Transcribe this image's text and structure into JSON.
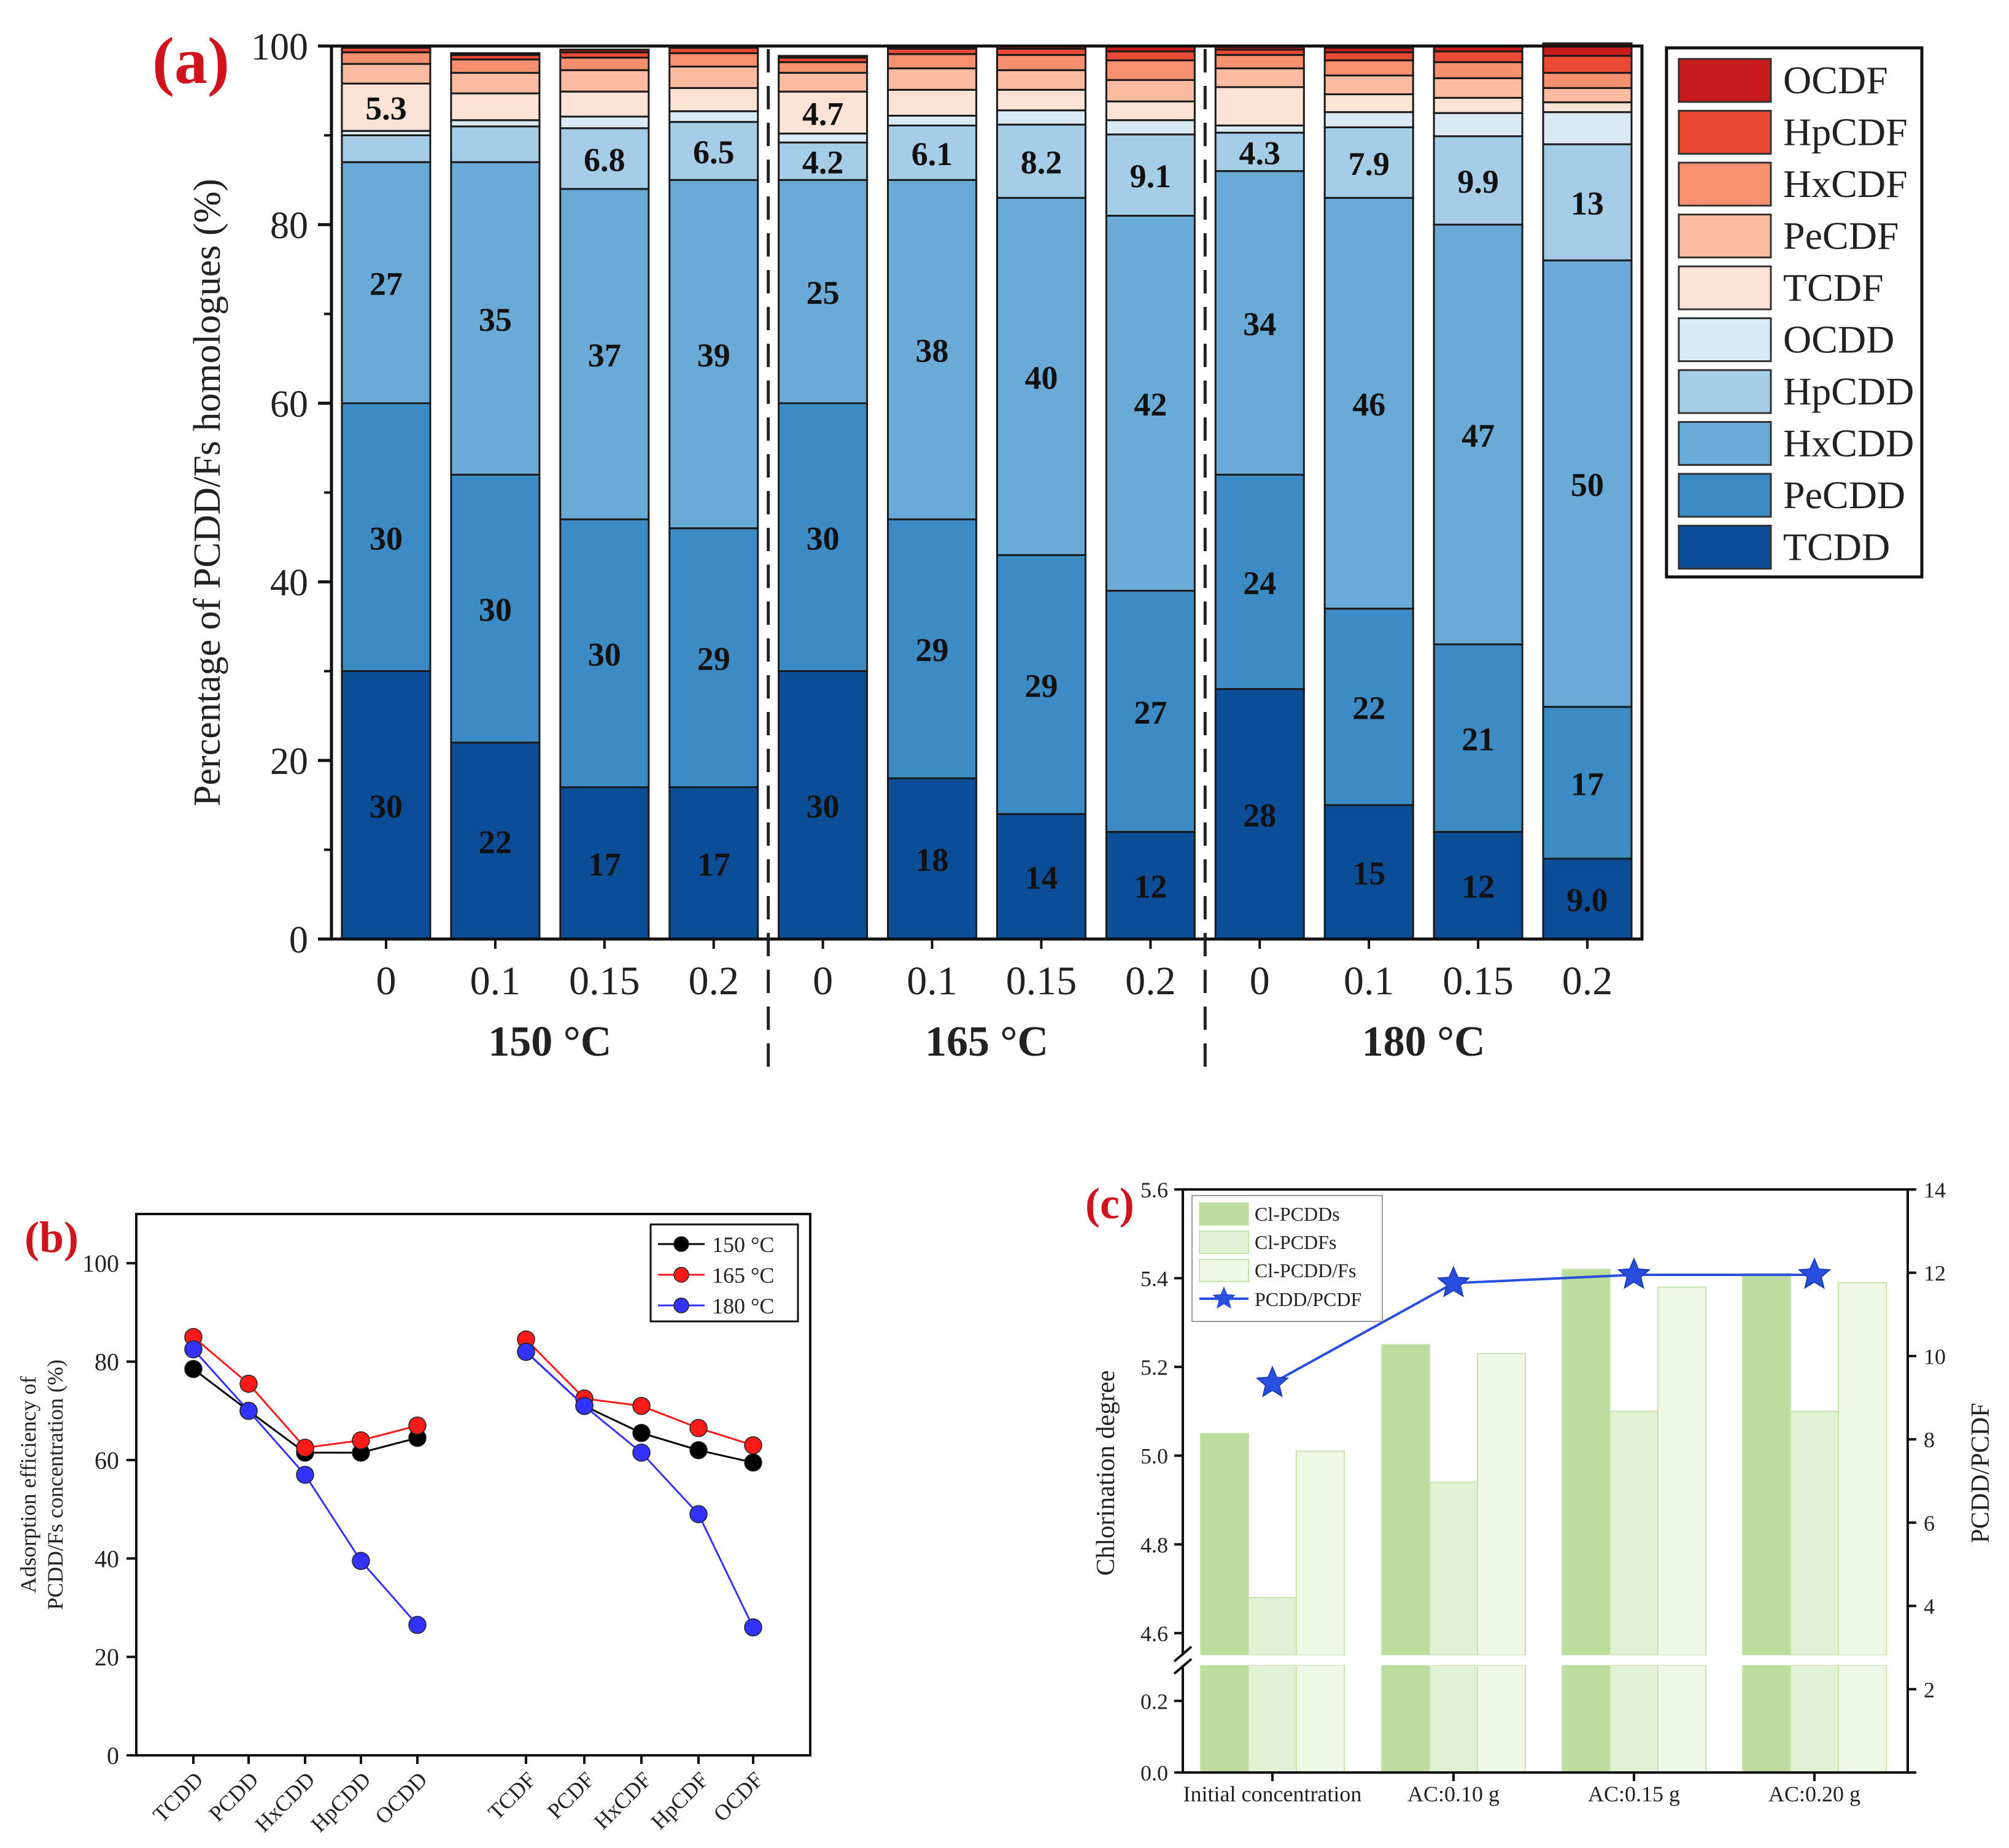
{
  "chart_data": [
    {
      "id": "a",
      "type": "bar",
      "stacked": true,
      "panel_label": "(a)",
      "ylabel": "Percentage of  PCDD/Fs homologues (%)",
      "ylim": [
        0,
        100
      ],
      "yticks": [
        "0",
        "20",
        "40",
        "60",
        "80",
        "100"
      ],
      "categories": [
        "0",
        "0.1",
        "0.15",
        "0.2",
        "0",
        "0.1",
        "0.15",
        "0.2",
        "0",
        "0.1",
        "0.15",
        "0.2"
      ],
      "groups": [
        "150 °C",
        "165 °C",
        "180 °C"
      ],
      "series": [
        {
          "name": "TCDD",
          "color": "#0b4d96",
          "values": [
            30,
            22,
            17,
            17,
            30,
            18,
            14,
            12,
            28,
            15,
            12,
            9.0
          ]
        },
        {
          "name": "PeCDD",
          "color": "#3c8bc5",
          "values": [
            30,
            30,
            30,
            29,
            30,
            29,
            29,
            27,
            24,
            22,
            21,
            17
          ]
        },
        {
          "name": "HxCDD",
          "color": "#6aaad7",
          "values": [
            27,
            35,
            37,
            39,
            25,
            38,
            40,
            42,
            34,
            46,
            47,
            50
          ]
        },
        {
          "name": "HpCDD",
          "color": "#a5cde8",
          "values": [
            3.0,
            4.0,
            6.8,
            6.5,
            4.2,
            6.1,
            8.2,
            9.1,
            4.3,
            7.9,
            9.9,
            13
          ]
        },
        {
          "name": "OCDD",
          "color": "#daeaf5",
          "values": [
            0.5,
            0.7,
            1.3,
            1.2,
            1.0,
            1.1,
            1.6,
            1.6,
            0.8,
            1.7,
            2.6,
            3.6
          ]
        },
        {
          "name": "TCDF",
          "color": "#fde3d5",
          "values": [
            5.3,
            3.0,
            2.8,
            2.6,
            4.7,
            2.9,
            2.3,
            2.1,
            4.3,
            2.0,
            1.7,
            1.1
          ]
        },
        {
          "name": "PeCDF",
          "color": "#fbbba0",
          "values": [
            2.2,
            2.3,
            2.4,
            2.4,
            2.1,
            2.4,
            2.2,
            2.4,
            2.1,
            2.1,
            2.2,
            1.6
          ]
        },
        {
          "name": "HxCDF",
          "color": "#f6906f",
          "values": [
            1.3,
            1.5,
            1.4,
            1.5,
            1.2,
            1.6,
            1.7,
            2.2,
            1.5,
            1.7,
            1.8,
            1.7
          ]
        },
        {
          "name": "HpCDF",
          "color": "#ea4a34",
          "values": [
            0.5,
            0.5,
            0.6,
            0.6,
            0.5,
            0.6,
            0.7,
            1.0,
            0.6,
            0.9,
            1.2,
            1.9
          ]
        },
        {
          "name": "OCDF",
          "color": "#c81b1d",
          "values": [
            0.2,
            0.2,
            0.3,
            0.2,
            0.2,
            0.2,
            0.3,
            0.6,
            0.3,
            0.5,
            0.6,
            1.4
          ]
        }
      ],
      "data_labels": {
        "TCDD": [
          "30",
          "22",
          "17",
          "17",
          "30",
          "18",
          "14",
          "12",
          "28",
          "15",
          "12",
          "9.0"
        ],
        "PeCDD": [
          "30",
          "30",
          "30",
          "29",
          "30",
          "29",
          "29",
          "27",
          "24",
          "22",
          "21",
          "17"
        ],
        "HxCDD": [
          "27",
          "35",
          "37",
          "39",
          "25",
          "38",
          "40",
          "42",
          "34",
          "46",
          "47",
          "50"
        ],
        "HpCDD": [
          "",
          "",
          "6.8",
          "6.5",
          "4.2",
          "6.1",
          "8.2",
          "9.1",
          "4.3",
          "7.9",
          "9.9",
          "13"
        ],
        "TCDF": [
          "5.3",
          "",
          "",
          "",
          "4.7",
          "",
          "",
          "",
          "",
          "",
          "",
          ""
        ]
      },
      "legend_order": [
        "OCDF",
        "HpCDF",
        "HxCDF",
        "PeCDF",
        "TCDF",
        "OCDD",
        "HpCDD",
        "HxCDD",
        "PeCDD",
        "TCDD"
      ],
      "legend_position": "right"
    },
    {
      "id": "b",
      "type": "line",
      "panel_label": "(b)",
      "ylabel_lines": [
        "Adsorption efficiency of",
        "PCDD/Fs concentration (%)"
      ],
      "ylim": [
        0,
        110
      ],
      "yticks": [
        "0",
        "20",
        "40",
        "60",
        "80",
        "100"
      ],
      "categories": [
        "TCDD",
        "PCDD",
        "HxCDD",
        "HpCDD",
        "OCDD",
        "TCDF",
        "PCDF",
        "HxCDF",
        "HpCDF",
        "OCDF"
      ],
      "series": [
        {
          "name": "150 °C",
          "color": "#000000",
          "values": [
            78.5,
            70,
            61.5,
            61.5,
            64.5,
            82,
            71,
            65.5,
            62,
            59.5
          ]
        },
        {
          "name": "165 °C",
          "color": "#ff1a1a",
          "values": [
            85,
            75.5,
            62.5,
            64,
            67,
            84.5,
            72.5,
            71,
            66.5,
            63
          ]
        },
        {
          "name": "180 °C",
          "color": "#3333ff",
          "values": [
            82.5,
            70,
            57,
            39.5,
            26.5,
            82,
            71,
            61.5,
            49,
            26
          ]
        }
      ],
      "legend_position": "top-right"
    },
    {
      "id": "c",
      "type": "bar",
      "panel_label": "(c)",
      "ylabel": "Chlorination degree",
      "y2label": "PCDD/PCDF",
      "yticks_upper": [
        "4.6",
        "4.8",
        "5.0",
        "5.2",
        "5.4",
        "5.6"
      ],
      "yticks_lower": [
        "0.0",
        "0.2"
      ],
      "y2ticks": [
        "2",
        "4",
        "6",
        "8",
        "10",
        "12",
        "14"
      ],
      "y_break": [
        0.3,
        4.5
      ],
      "categories": [
        "Initial concentration",
        "AC:0.10 g",
        "AC:0.15 g",
        "AC:0.20 g"
      ],
      "series": [
        {
          "name": "Cl-PCDDs",
          "color": "#bcdd9e",
          "values": [
            5.05,
            5.25,
            5.42,
            5.41
          ]
        },
        {
          "name": "Cl-PCDFs",
          "color": "#e1f1d3",
          "values": [
            4.68,
            4.94,
            5.1,
            5.1
          ]
        },
        {
          "name": "Cl-PCDD/Fs",
          "color": "#eff8e6",
          "values": [
            5.01,
            5.23,
            5.38,
            5.39
          ]
        }
      ],
      "line_series": {
        "name": "PCDD/PCDF",
        "color": "#2a4fe0",
        "values": [
          9.35,
          11.75,
          11.95,
          11.95
        ]
      },
      "legend_position": "top-left"
    }
  ]
}
